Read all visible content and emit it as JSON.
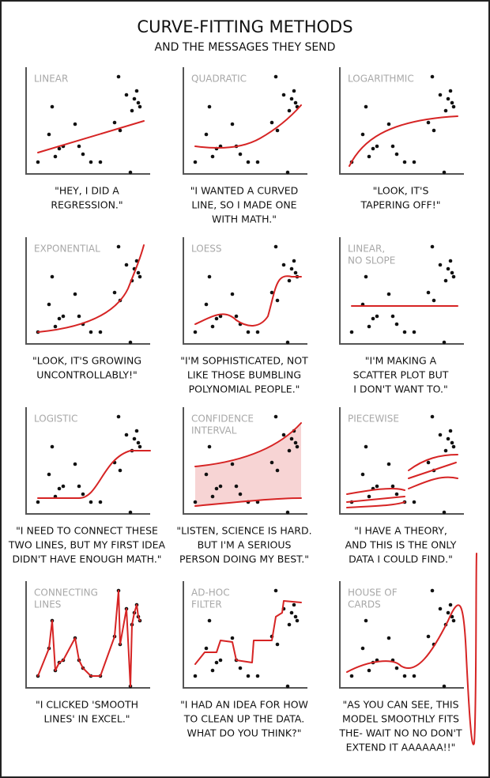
{
  "title": "CURVE-FITTING METHODS",
  "subtitle": "AND THE MESSAGES THEY SEND",
  "panels": [
    {
      "label": [
        "LINEAR"
      ],
      "caption": [
        "\"HEY, I DID A",
        "REGRESSION.\""
      ]
    },
    {
      "label": [
        "QUADRATIC"
      ],
      "caption": [
        "\"I WANTED A CURVED",
        "LINE, SO I MADE ONE",
        "WITH MATH.\""
      ]
    },
    {
      "label": [
        "LOGARITHMIC"
      ],
      "caption": [
        "\"LOOK, IT'S",
        "TAPERING OFF!\""
      ]
    },
    {
      "label": [
        "EXPONENTIAL"
      ],
      "caption": [
        "\"LOOK, IT'S GROWING",
        "UNCONTROLLABLY!\""
      ]
    },
    {
      "label": [
        "LOESS"
      ],
      "caption": [
        "\"I'M SOPHISTICATED, NOT",
        "LIKE THOSE BUMBLING",
        "POLYNOMIAL PEOPLE.\""
      ]
    },
    {
      "label": [
        "LINEAR,",
        "NO SLOPE"
      ],
      "caption": [
        "\"I'M MAKING A",
        "SCATTER PLOT BUT",
        "I DON'T WANT TO.\""
      ]
    },
    {
      "label": [
        "LOGISTIC"
      ],
      "caption": [
        "\"I NEED TO CONNECT THESE",
        "TWO LINES, BUT MY FIRST IDEA",
        "DIDN'T HAVE ENOUGH MATH.\""
      ]
    },
    {
      "label": [
        "CONFIDENCE",
        "INTERVAL"
      ],
      "caption": [
        "\"LISTEN, SCIENCE IS HARD.",
        "BUT I'M A SERIOUS",
        "PERSON DOING MY BEST.\""
      ]
    },
    {
      "label": [
        "PIECEWISE"
      ],
      "caption": [
        "\"I HAVE A THEORY,",
        "AND THIS IS THE ONLY",
        "DATA I COULD FIND.\""
      ]
    },
    {
      "label": [
        "CONNECTING",
        "LINES"
      ],
      "caption": [
        "\"I CLICKED 'SMOOTH",
        "LINES' IN EXCEL.\""
      ]
    },
    {
      "label": [
        "AD-HOC",
        "FILTER"
      ],
      "caption": [
        "\"I HAD AN IDEA FOR HOW",
        "TO CLEAN UP THE DATA.",
        "WHAT DO YOU THINK?\""
      ]
    },
    {
      "label": [
        "HOUSE OF",
        "CARDS"
      ],
      "caption": [
        "\"AS YOU CAN SEE, THIS",
        "MODEL SMOOTHLY FITS",
        "THE- WAIT NO NO DON'T",
        "EXTEND IT AAAAAA!!\""
      ]
    }
  ]
}
